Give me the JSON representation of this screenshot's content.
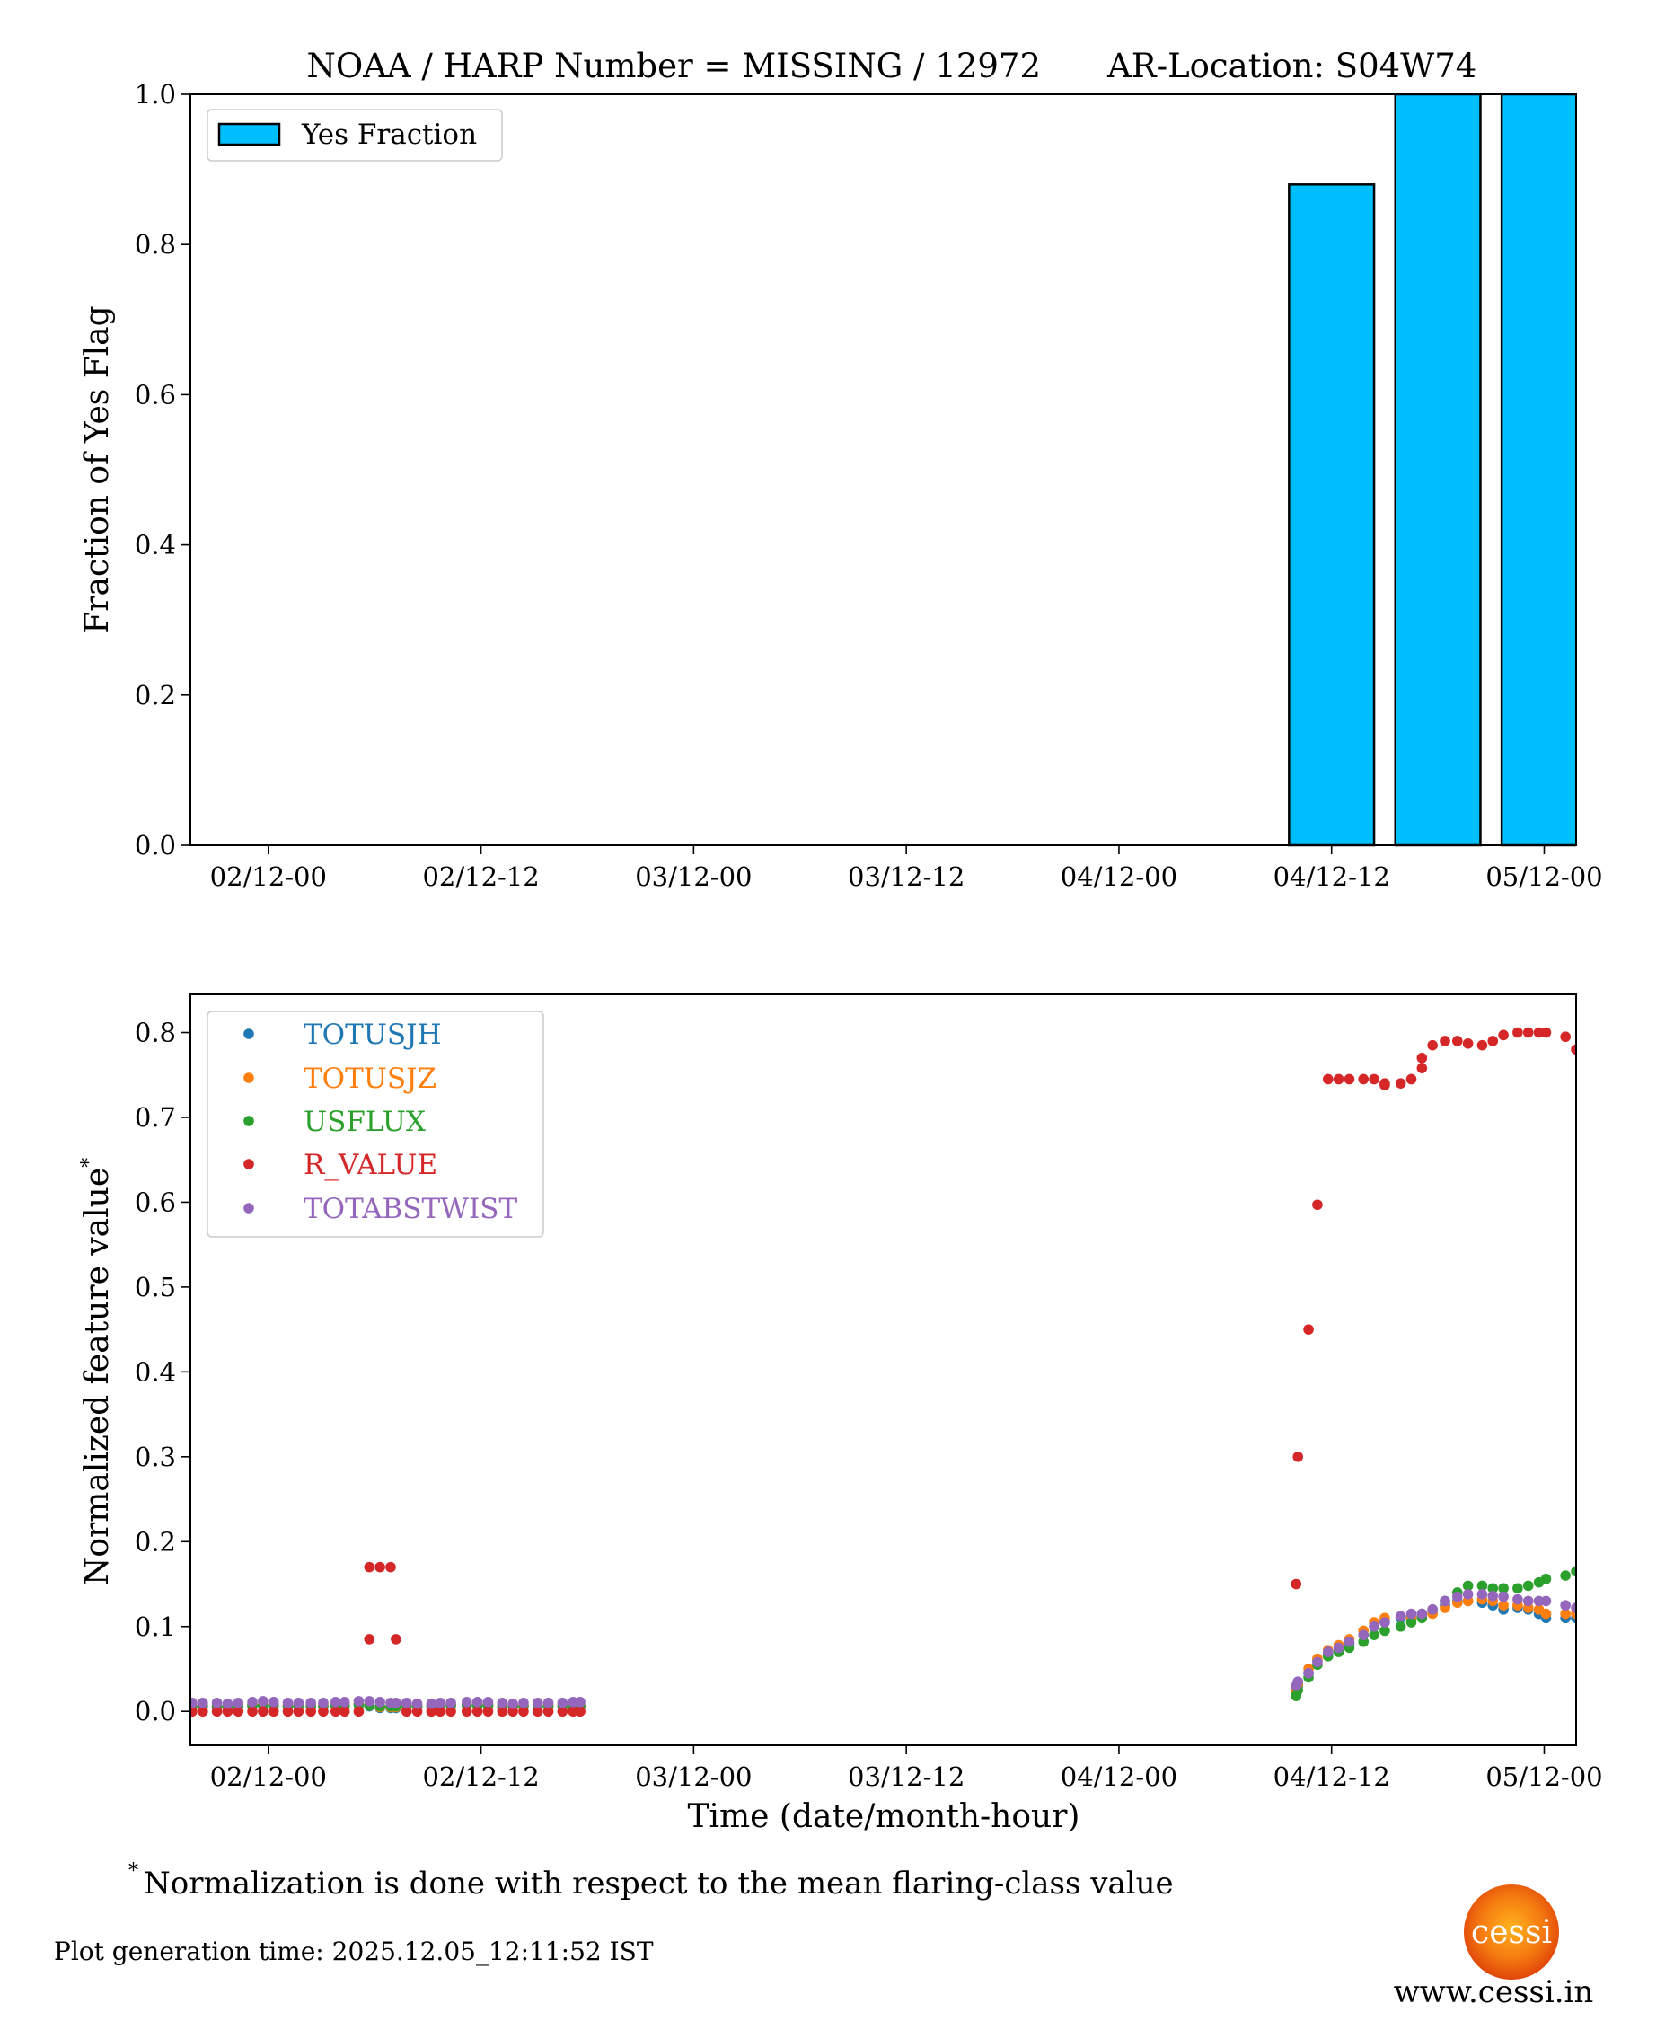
{
  "title_left": "NOAA / HARP Number = MISSING / 12972",
  "title_right": "AR-Location: S04W74",
  "footnote_mark": "*",
  "footnote": "Normalization is done with respect to the mean flaring-class value",
  "generation_time": "Plot generation time: 2025.12.05_12:11:52 IST",
  "logo_text": "cessi",
  "website": "www.cessi.in",
  "chart_data": [
    {
      "type": "bar",
      "title": "NOAA / HARP Number = MISSING / 12972      AR-Location: S04W74",
      "xlabel": "",
      "ylabel": "Fraction of Yes Flag",
      "x_units": "hours since 02/12-00",
      "xlim": [
        -4.4,
        73.8
      ],
      "ylim": [
        0,
        1.0
      ],
      "yticks": [
        0.0,
        0.2,
        0.4,
        0.6,
        0.8,
        1.0
      ],
      "ytick_labels": [
        "0.0",
        "0.2",
        "0.4",
        "0.6",
        "0.8",
        "1.0"
      ],
      "xticks": [
        0,
        12,
        24,
        36,
        48,
        60,
        72
      ],
      "xtick_labels": [
        "02/12-00",
        "02/12-12",
        "03/12-00",
        "03/12-12",
        "04/12-00",
        "04/12-12",
        "05/12-00"
      ],
      "legend": {
        "label": "Yes Fraction",
        "placement": "top-left"
      },
      "bar_color": "#00bfff",
      "bar_width_hours": 4.8,
      "x": [
        60,
        66,
        72
      ],
      "values": [
        0.88,
        1.0,
        1.0
      ]
    },
    {
      "type": "scatter",
      "xlabel": "Time (date/month-hour)",
      "ylabel": "Normalized feature value",
      "ylabel_sup": "*",
      "x_units": "hours since 02/12-00",
      "xlim": [
        -4.4,
        73.8
      ],
      "ylim": [
        -0.04,
        0.845
      ],
      "yticks": [
        0.0,
        0.1,
        0.2,
        0.3,
        0.4,
        0.5,
        0.6,
        0.7,
        0.8
      ],
      "ytick_labels": [
        "0.0",
        "0.1",
        "0.2",
        "0.3",
        "0.4",
        "0.5",
        "0.6",
        "0.7",
        "0.8"
      ],
      "xticks": [
        0,
        12,
        24,
        36,
        48,
        60,
        72
      ],
      "xtick_labels": [
        "02/12-00",
        "02/12-12",
        "03/12-00",
        "03/12-12",
        "04/12-00",
        "04/12-12",
        "05/12-00"
      ],
      "legend_placement": "top-left",
      "x": [
        -4.3,
        -3.7,
        -2.9,
        -2.3,
        -1.7,
        -0.9,
        -0.3,
        0.3,
        1.1,
        1.7,
        2.4,
        3.1,
        3.8,
        4.3,
        5.1,
        5.7,
        6.3,
        6.9,
        7.2,
        7.8,
        8.4,
        9.2,
        9.7,
        10.3,
        11.2,
        11.8,
        12.4,
        13.2,
        13.8,
        14.4,
        15.2,
        15.8,
        16.6,
        17.2,
        17.6,
        58.0,
        58.1,
        58.7,
        59.2,
        59.8,
        60.4,
        61.0,
        61.8,
        62.4,
        63.0,
        63.9,
        64.5,
        65.1,
        65.7,
        66.4,
        67.1,
        67.7,
        68.5,
        69.1,
        69.7,
        70.5,
        71.1,
        71.7,
        72.1,
        73.2,
        73.8
      ],
      "series": [
        {
          "name": "TOTUSJH",
          "color": "#1f77b4",
          "y": [
            0.006,
            0.006,
            0.005,
            0.005,
            0.006,
            0.006,
            0.007,
            0.007,
            0.006,
            0.006,
            0.006,
            0.006,
            0.007,
            0.007,
            0.008,
            0.006,
            0.004,
            0.004,
            0.004,
            0.006,
            0.006,
            0.006,
            0.006,
            0.007,
            0.007,
            0.007,
            0.007,
            0.006,
            0.006,
            0.006,
            0.006,
            0.006,
            0.006,
            0.006,
            0.006,
            0.02,
            0.03,
            0.045,
            0.06,
            0.068,
            0.072,
            0.08,
            0.09,
            0.1,
            0.105,
            0.11,
            0.112,
            0.115,
            0.118,
            0.125,
            0.13,
            0.13,
            0.128,
            0.125,
            0.12,
            0.122,
            0.12,
            0.115,
            0.11,
            0.11,
            0.11
          ]
        },
        {
          "name": "TOTUSJZ",
          "color": "#ff7f0e",
          "y": [
            0.007,
            0.007,
            0.006,
            0.006,
            0.007,
            0.008,
            0.008,
            0.008,
            0.007,
            0.007,
            0.007,
            0.007,
            0.008,
            0.008,
            0.009,
            0.007,
            0.005,
            0.005,
            0.005,
            0.007,
            0.007,
            0.007,
            0.007,
            0.008,
            0.008,
            0.008,
            0.008,
            0.007,
            0.007,
            0.007,
            0.007,
            0.007,
            0.007,
            0.007,
            0.007,
            0.025,
            0.032,
            0.05,
            0.062,
            0.072,
            0.078,
            0.085,
            0.095,
            0.105,
            0.11,
            0.112,
            0.11,
            0.112,
            0.115,
            0.122,
            0.128,
            0.13,
            0.132,
            0.13,
            0.125,
            0.125,
            0.122,
            0.12,
            0.115,
            0.115,
            0.115
          ]
        },
        {
          "name": "USFLUX",
          "color": "#2ca02c",
          "y": [
            0.006,
            0.006,
            0.006,
            0.006,
            0.006,
            0.007,
            0.007,
            0.007,
            0.006,
            0.006,
            0.006,
            0.006,
            0.007,
            0.007,
            0.008,
            0.007,
            0.006,
            0.006,
            0.006,
            0.006,
            0.006,
            0.006,
            0.006,
            0.007,
            0.007,
            0.007,
            0.007,
            0.006,
            0.006,
            0.006,
            0.006,
            0.006,
            0.006,
            0.006,
            0.006,
            0.018,
            0.025,
            0.04,
            0.055,
            0.065,
            0.07,
            0.075,
            0.082,
            0.09,
            0.095,
            0.1,
            0.105,
            0.11,
            0.12,
            0.13,
            0.14,
            0.148,
            0.148,
            0.145,
            0.145,
            0.145,
            0.148,
            0.152,
            0.156,
            0.16,
            0.165
          ]
        },
        {
          "name": "R_VALUE",
          "color": "#d62728",
          "y": [
            0,
            0,
            0,
            0,
            0,
            0,
            0,
            0,
            0,
            0,
            0,
            0,
            0,
            0,
            0,
            0.17,
            0.17,
            0.17,
            0.085,
            0,
            0,
            0,
            0,
            0,
            0,
            0,
            0,
            0,
            0,
            0,
            0,
            0,
            0,
            0,
            0,
            0.15,
            0.3,
            0.45,
            0.597,
            0.745,
            0.745,
            0.745,
            0.745,
            0.745,
            0.74,
            0.74,
            0.745,
            0.77,
            0.785,
            0.79,
            0.79,
            0.787,
            0.785,
            0.79,
            0.797,
            0.8,
            0.8,
            0.8,
            0.8,
            0.795,
            0.78
          ],
          "extra_points": [
            [
              5.7,
              0.085
            ],
            [
              63.0,
              0.738
            ],
            [
              65.1,
              0.758
            ]
          ]
        },
        {
          "name": "TOTABSTWIST",
          "color": "#9467bd",
          "y": [
            0.01,
            0.01,
            0.01,
            0.009,
            0.01,
            0.011,
            0.012,
            0.011,
            0.01,
            0.01,
            0.01,
            0.01,
            0.011,
            0.011,
            0.012,
            0.012,
            0.011,
            0.01,
            0.01,
            0.01,
            0.009,
            0.009,
            0.01,
            0.01,
            0.011,
            0.011,
            0.011,
            0.01,
            0.009,
            0.01,
            0.01,
            0.01,
            0.01,
            0.011,
            0.011,
            0.03,
            0.035,
            0.045,
            0.058,
            0.07,
            0.075,
            0.082,
            0.09,
            0.1,
            0.105,
            0.112,
            0.115,
            0.115,
            0.12,
            0.13,
            0.135,
            0.138,
            0.138,
            0.136,
            0.135,
            0.132,
            0.13,
            0.13,
            0.13,
            0.125,
            0.122
          ]
        }
      ]
    }
  ]
}
